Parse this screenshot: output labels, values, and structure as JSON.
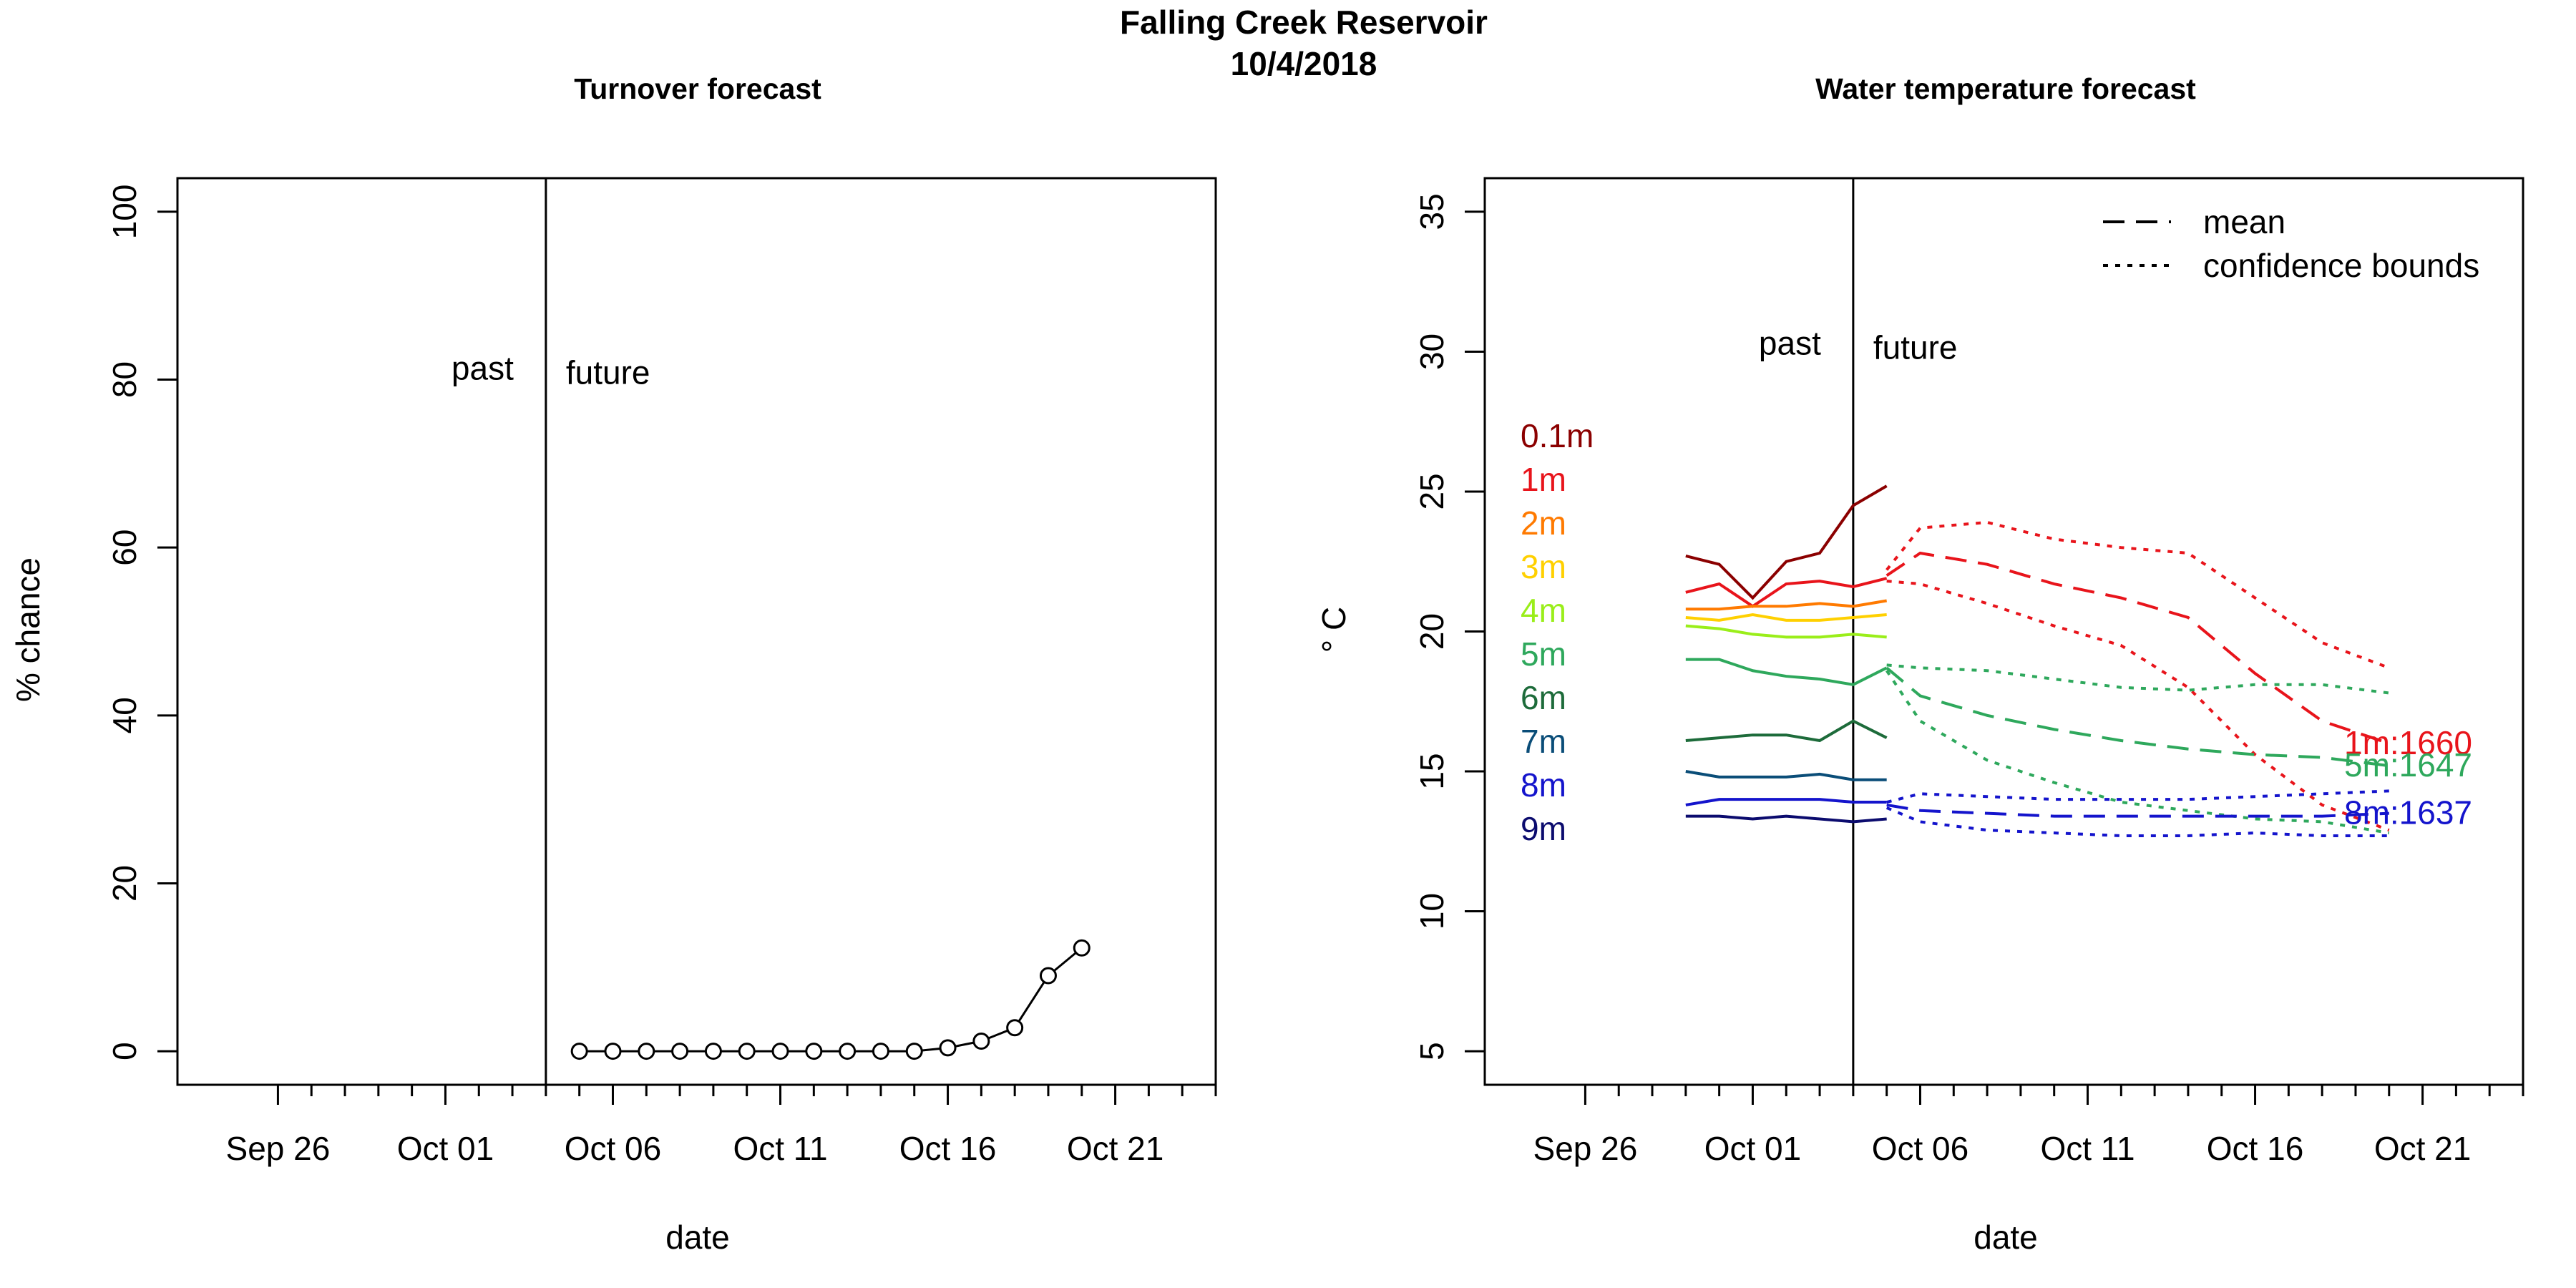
{
  "figure": {
    "title_line1": "Falling Creek Reservoir",
    "title_line2": "10/4/2018"
  },
  "chart_data": [
    {
      "type": "line",
      "title": "Turnover forecast",
      "xlabel": "date",
      "ylabel": "% chance",
      "xlim": [
        "2018-09-23",
        "2018-10-24"
      ],
      "ylim": [
        -4,
        104
      ],
      "yticks": [
        0,
        20,
        40,
        60,
        80,
        100
      ],
      "xticks_labeled": [
        {
          "date": "2018-09-26",
          "label": "Sep 26"
        },
        {
          "date": "2018-10-01",
          "label": "Oct 01"
        },
        {
          "date": "2018-10-06",
          "label": "Oct 06"
        },
        {
          "date": "2018-10-11",
          "label": "Oct 11"
        },
        {
          "date": "2018-10-16",
          "label": "Oct 16"
        },
        {
          "date": "2018-10-21",
          "label": "Oct 21"
        }
      ],
      "vline": {
        "date": "2018-10-04",
        "label_left": "past",
        "label_right": "future"
      },
      "series": [
        {
          "color": "#000000",
          "marker": "open-circle",
          "points": [
            [
              "2018-10-05",
              0
            ],
            [
              "2018-10-06",
              0
            ],
            [
              "2018-10-07",
              0
            ],
            [
              "2018-10-08",
              0
            ],
            [
              "2018-10-09",
              0
            ],
            [
              "2018-10-10",
              0
            ],
            [
              "2018-10-11",
              0
            ],
            [
              "2018-10-12",
              0
            ],
            [
              "2018-10-13",
              0
            ],
            [
              "2018-10-14",
              0
            ],
            [
              "2018-10-15",
              0
            ],
            [
              "2018-10-16",
              0.4
            ],
            [
              "2018-10-17",
              1.2
            ],
            [
              "2018-10-18",
              2.8
            ],
            [
              "2018-10-19",
              9
            ],
            [
              "2018-10-20",
              12.3
            ]
          ]
        }
      ]
    },
    {
      "type": "line",
      "title": "Water temperature forecast",
      "xlabel": "date",
      "ylabel": "° C",
      "xlim": [
        "2018-09-23",
        "2018-10-24"
      ],
      "ylim": [
        3.8,
        36.2
      ],
      "yticks": [
        5,
        10,
        15,
        20,
        25,
        30,
        35
      ],
      "xticks_labeled": [
        {
          "date": "2018-09-26",
          "label": "Sep 26"
        },
        {
          "date": "2018-10-01",
          "label": "Oct 01"
        },
        {
          "date": "2018-10-06",
          "label": "Oct 06"
        },
        {
          "date": "2018-10-11",
          "label": "Oct 11"
        },
        {
          "date": "2018-10-16",
          "label": "Oct 16"
        },
        {
          "date": "2018-10-21",
          "label": "Oct 21"
        }
      ],
      "vline": {
        "date": "2018-10-04",
        "label_left": "past",
        "label_right": "future"
      },
      "legend": {
        "position": "top-right",
        "items": [
          {
            "label": "mean",
            "style": "dashed"
          },
          {
            "label": "confidence bounds",
            "style": "dotted"
          }
        ]
      },
      "depth_labels": [
        {
          "label": "0.1m",
          "color": "#8b0000"
        },
        {
          "label": "1m",
          "color": "#e8141b"
        },
        {
          "label": "2m",
          "color": "#ff7a00"
        },
        {
          "label": "3m",
          "color": "#ffd000"
        },
        {
          "label": "4m",
          "color": "#9aee1a"
        },
        {
          "label": "5m",
          "color": "#2ea85c"
        },
        {
          "label": "6m",
          "color": "#1d6b3a"
        },
        {
          "label": "7m",
          "color": "#0a4d78"
        },
        {
          "label": "8m",
          "color": "#1414cc"
        },
        {
          "label": "9m",
          "color": "#0b0b6e"
        }
      ],
      "observed_x": [
        "2018-09-29",
        "2018-09-30",
        "2018-10-01",
        "2018-10-02",
        "2018-10-03",
        "2018-10-04",
        "2018-10-05"
      ],
      "observed": [
        {
          "depth": "0.1m",
          "color": "#8b0000",
          "values": [
            22.7,
            22.4,
            21.2,
            22.5,
            22.8,
            24.5,
            25.2
          ]
        },
        {
          "depth": "1m",
          "color": "#e8141b",
          "values": [
            21.4,
            21.7,
            20.9,
            21.7,
            21.8,
            21.6,
            21.9
          ]
        },
        {
          "depth": "2m",
          "color": "#ff7a00",
          "values": [
            20.8,
            20.8,
            20.9,
            20.9,
            21.0,
            20.9,
            21.1
          ]
        },
        {
          "depth": "3m",
          "color": "#ffd000",
          "values": [
            20.5,
            20.4,
            20.6,
            20.4,
            20.4,
            20.5,
            20.6
          ]
        },
        {
          "depth": "4m",
          "color": "#9aee1a",
          "values": [
            20.2,
            20.1,
            19.9,
            19.8,
            19.8,
            19.9,
            19.8
          ]
        },
        {
          "depth": "5m",
          "color": "#2ea85c",
          "values": [
            19.0,
            19.0,
            18.6,
            18.4,
            18.3,
            18.1,
            18.7
          ]
        },
        {
          "depth": "6m",
          "color": "#1d6b3a",
          "values": [
            16.1,
            16.2,
            16.3,
            16.3,
            16.1,
            16.8,
            16.2
          ]
        },
        {
          "depth": "7m",
          "color": "#0a4d78",
          "values": [
            15.0,
            14.8,
            14.8,
            14.8,
            14.9,
            14.7,
            14.7
          ]
        },
        {
          "depth": "8m",
          "color": "#1414cc",
          "values": [
            13.8,
            14.0,
            14.0,
            14.0,
            14.0,
            13.9,
            13.9
          ]
        },
        {
          "depth": "9m",
          "color": "#0b0b6e",
          "values": [
            13.4,
            13.4,
            13.3,
            13.4,
            13.3,
            13.2,
            13.3
          ]
        }
      ],
      "forecast_x": [
        "2018-10-05",
        "2018-10-06",
        "2018-10-08",
        "2018-10-10",
        "2018-10-12",
        "2018-10-14",
        "2018-10-16",
        "2018-10-18",
        "2018-10-20"
      ],
      "forecasts": [
        {
          "depth": "1m",
          "color": "#e8141b",
          "label": "1m:1660",
          "mean": [
            22.0,
            22.8,
            22.4,
            21.7,
            21.2,
            20.5,
            18.5,
            16.8,
            16.0
          ],
          "upper": [
            22.2,
            23.7,
            23.9,
            23.3,
            23.0,
            22.8,
            21.2,
            19.6,
            18.7
          ],
          "lower": [
            21.8,
            21.7,
            21.0,
            20.2,
            19.5,
            18.0,
            15.6,
            13.8,
            12.9
          ]
        },
        {
          "depth": "5m",
          "color": "#2ea85c",
          "label": "5m:1647",
          "mean": [
            18.7,
            17.7,
            17.0,
            16.5,
            16.1,
            15.8,
            15.6,
            15.5,
            15.2
          ],
          "upper": [
            18.8,
            18.7,
            18.6,
            18.3,
            18.0,
            17.9,
            18.1,
            18.1,
            17.8
          ],
          "lower": [
            18.6,
            16.8,
            15.4,
            14.6,
            13.9,
            13.6,
            13.3,
            13.2,
            12.8
          ]
        },
        {
          "depth": "8m",
          "color": "#1414cc",
          "label": "8m:1637",
          "mean": [
            13.8,
            13.6,
            13.5,
            13.4,
            13.4,
            13.4,
            13.4,
            13.4,
            13.5
          ],
          "upper": [
            13.9,
            14.2,
            14.1,
            14.0,
            14.0,
            14.0,
            14.1,
            14.2,
            14.3
          ],
          "lower": [
            13.7,
            13.2,
            12.9,
            12.8,
            12.7,
            12.7,
            12.8,
            12.7,
            12.7
          ]
        }
      ]
    }
  ]
}
